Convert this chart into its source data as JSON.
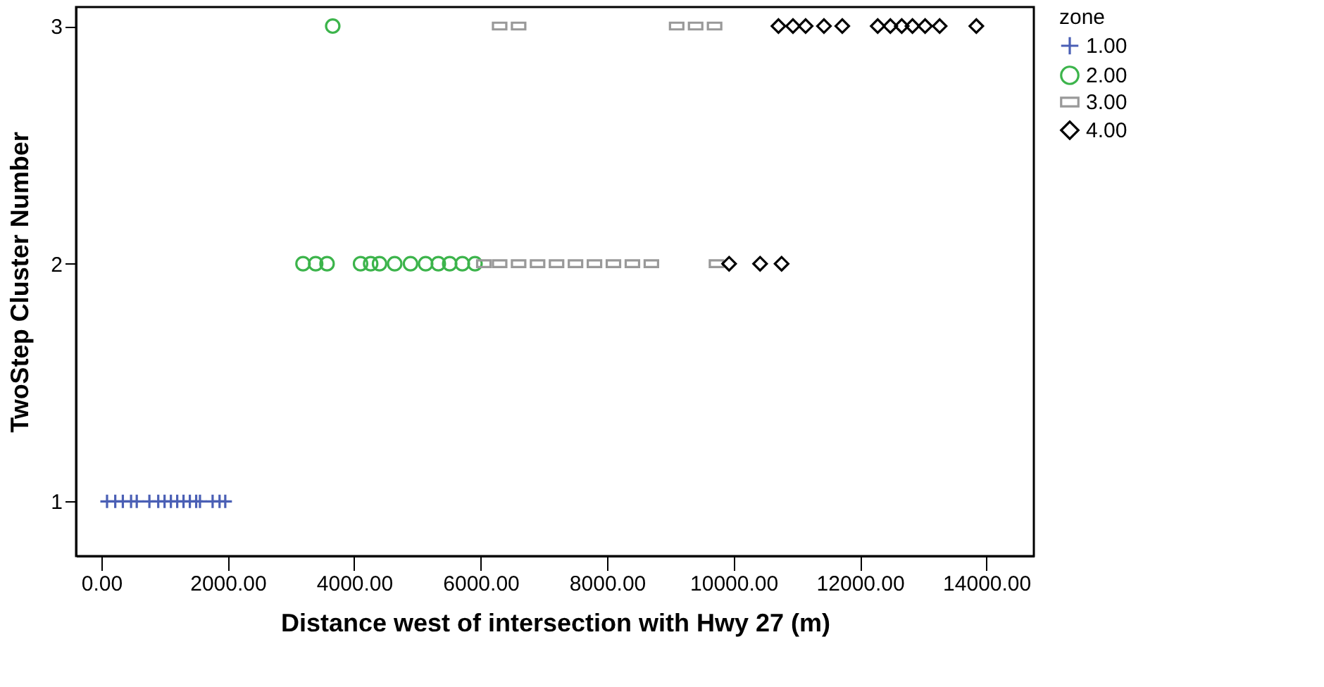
{
  "chart_data": {
    "type": "scatter",
    "xlabel": "Distance west of intersection with Hwy 27 (m)",
    "ylabel": "TwoStep Cluster Number",
    "legend_title": "zone",
    "legend": "right",
    "grid": false,
    "xlim": [
      -400,
      14750
    ],
    "ylim": [
      0.77,
      3.08
    ],
    "xticks": [
      {
        "value": 0,
        "label": "0.00"
      },
      {
        "value": 2000,
        "label": "2000.00"
      },
      {
        "value": 4000,
        "label": "4000.00"
      },
      {
        "value": 6000,
        "label": "6000.00"
      },
      {
        "value": 8000,
        "label": "8000.00"
      },
      {
        "value": 10000,
        "label": "10000.00"
      },
      {
        "value": 12000,
        "label": "12000.00"
      },
      {
        "value": 14000,
        "label": "14000.00"
      }
    ],
    "yticks": [
      1,
      2,
      3
    ],
    "series": [
      {
        "name": "1.00",
        "color": "#4a5fb5",
        "marker": "cross",
        "x": [
          90,
          220,
          340,
          470,
          560,
          760,
          900,
          1000,
          1100,
          1200,
          1300,
          1400,
          1500,
          1560,
          1760,
          1870,
          1960
        ],
        "values": [
          1,
          1,
          1,
          1,
          1,
          1,
          1,
          1,
          1,
          1,
          1,
          1,
          1,
          1,
          1,
          1,
          1
        ]
      },
      {
        "name": "2.00",
        "color": "#3cb44b",
        "marker": "circle",
        "x": [
          3190,
          3390,
          3570,
          4100,
          4260,
          4400,
          4640,
          4890,
          5130,
          5330,
          5510,
          5710,
          5910,
          3660
        ],
        "values": [
          2,
          2,
          2,
          2,
          2,
          2,
          2,
          2,
          2,
          2,
          2,
          2,
          2,
          3
        ]
      },
      {
        "name": "3.00",
        "color": "#999999",
        "marker": "square",
        "x": [
          6050,
          6300,
          6600,
          6900,
          7200,
          7500,
          7800,
          8100,
          8400,
          8700,
          9730,
          6300,
          6600,
          9100,
          9400,
          9700
        ],
        "values": [
          2,
          2,
          2,
          2,
          2,
          2,
          2,
          2,
          2,
          2,
          2,
          3,
          3,
          3,
          3,
          3
        ]
      },
      {
        "name": "4.00",
        "color": "#000000",
        "marker": "diamond",
        "x": [
          9930,
          10420,
          10760,
          10710,
          10940,
          11140,
          11430,
          11720,
          12280,
          12480,
          12660,
          12830,
          13030,
          13260,
          13840
        ],
        "values": [
          2,
          2,
          2,
          3,
          3,
          3,
          3,
          3,
          3,
          3,
          3,
          3,
          3,
          3,
          3
        ]
      }
    ]
  }
}
